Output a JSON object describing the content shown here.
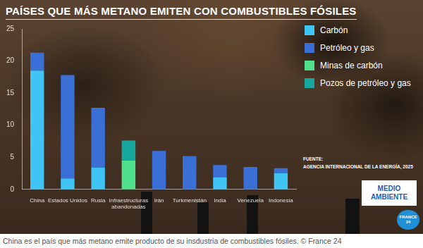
{
  "chart_data": {
    "type": "bar",
    "title": "PAÍSES QUE MÁS METANO EMITEN CON COMBUSTIBLES FÓSILES",
    "categories": [
      "China",
      "Estados Unidos",
      "Rusia",
      "Infraestructuras abandonadas",
      "Irán",
      "Turkmenistán",
      "India",
      "Venezuela",
      "Indonesia"
    ],
    "series": [
      {
        "name": "Carbón",
        "color": "#3fc4f4",
        "values": [
          18.5,
          1.7,
          3.4,
          null,
          null,
          null,
          1.9,
          null,
          2.5
        ]
      },
      {
        "name": "Petróleo y gas",
        "color": "#3a6fd6",
        "values": [
          2.8,
          16.1,
          9.3,
          null,
          6.0,
          5.2,
          1.9,
          3.5,
          0.8
        ]
      },
      {
        "name": "Minas de carbón",
        "color": "#4ee08a",
        "values": [
          null,
          null,
          null,
          4.5,
          null,
          null,
          null,
          null,
          null
        ]
      },
      {
        "name": "Pozos de petróleo y gas",
        "color": "#16a89f",
        "values": [
          null,
          null,
          null,
          3.1,
          null,
          null,
          null,
          null,
          null
        ]
      }
    ],
    "ylim": [
      0,
      25
    ],
    "yticks": [
      0,
      5,
      10,
      15,
      20,
      25
    ],
    "stacked": true,
    "grid": false,
    "legend": "right",
    "source": [
      "FUENTE:",
      "AGENCIA INTERNACIONAL DE LA ENERGÍA, 2025"
    ],
    "annotations": [
      "MEDIO AMBIENTE",
      "FRANCE 24"
    ],
    "caption": "China es el país que más metano emite producto de su insdustria de combustibles fósiles. © France 24"
  }
}
